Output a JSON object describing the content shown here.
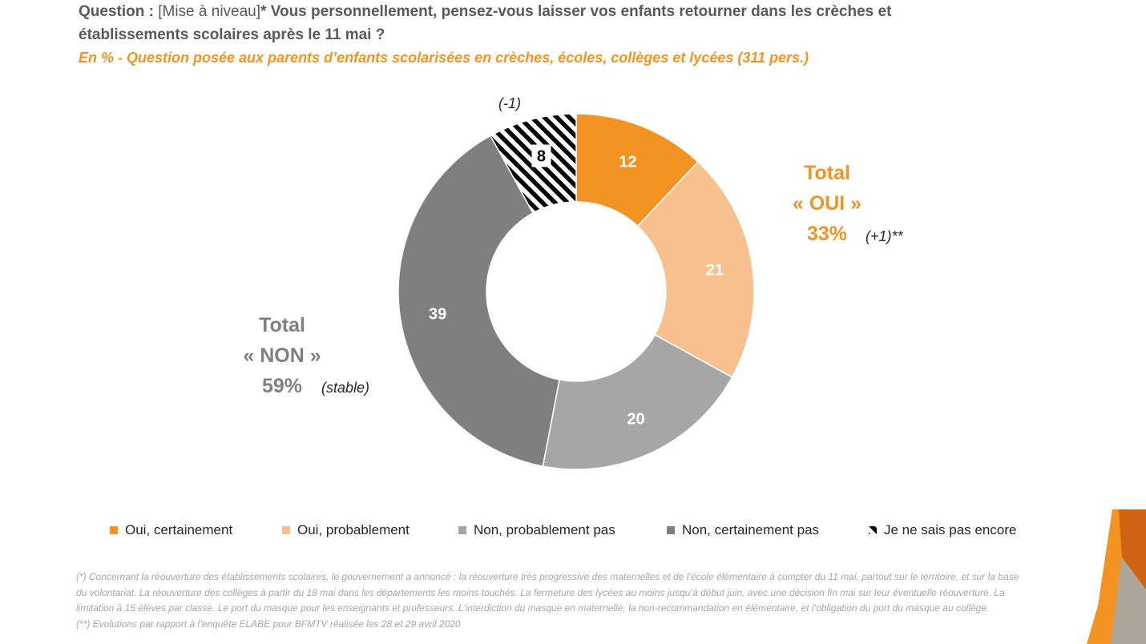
{
  "question": {
    "prefix": "Question : ",
    "tag": "[Mise à niveau]",
    "line1": "* Vous personnellement, pensez-vous laisser vos enfants retourner dans les crèches et",
    "line2": "établissements scolaires après le 11 mai ?"
  },
  "subtitle": "En % - Question posée aux parents d’enfants scolarisées en crèches, écoles, collèges et lycées (311 pers.)",
  "chart_data": {
    "type": "pie",
    "donut": true,
    "unit": "%",
    "categories": [
      "Oui, certainement",
      "Oui, probablement",
      "Non, probablement pas",
      "Non, certainement pas",
      "Je ne sais pas encore"
    ],
    "values": [
      12,
      21,
      20,
      39,
      8
    ],
    "colors": [
      "#F39422",
      "#F8C08D",
      "#A6A6A6",
      "#7F7F7F",
      "hatch"
    ],
    "label_colors": [
      "#ffffff",
      "#ffffff",
      "#ffffff",
      "#ffffff",
      "#000000"
    ],
    "slice_annotations": [
      {
        "index": 4,
        "text": "(-1)"
      }
    ],
    "totals": {
      "oui": {
        "label1": "Total",
        "label2": "« OUI »",
        "value": "33%",
        "evolution": "(+1)**"
      },
      "non": {
        "label1": "Total",
        "label2": "« NON »",
        "value": "59%",
        "evolution": "(stable)"
      }
    },
    "legend_position": "bottom"
  },
  "footnotes": [
    "(*) Concernant la réouverture des établissements scolaires, le gouvernement a annoncé : la réouverture très progressive des maternelles et de l’école élémentaire à compter du 11 mai, partout sur le territoire, et sur la base du volontariat. La réouverture des collèges à partir du 18 mai dans les départements les moins touchés. La fermeture des lycées au moins jusqu’à début juin, avec une décision fin mai sur leur éventuelle réouverture. La limitation à 15 élèves par classe. Le port du masque pour les enseignants et professeurs. L’interdiction du masque en maternelle, la non-recommandation en élémentaire, et l’obligation du port du masque au collège.",
    "(**) Evolutions par rapport à l’enquête ELABE pour BFMTV réalisée les 28 et 29 avril 2020"
  ]
}
